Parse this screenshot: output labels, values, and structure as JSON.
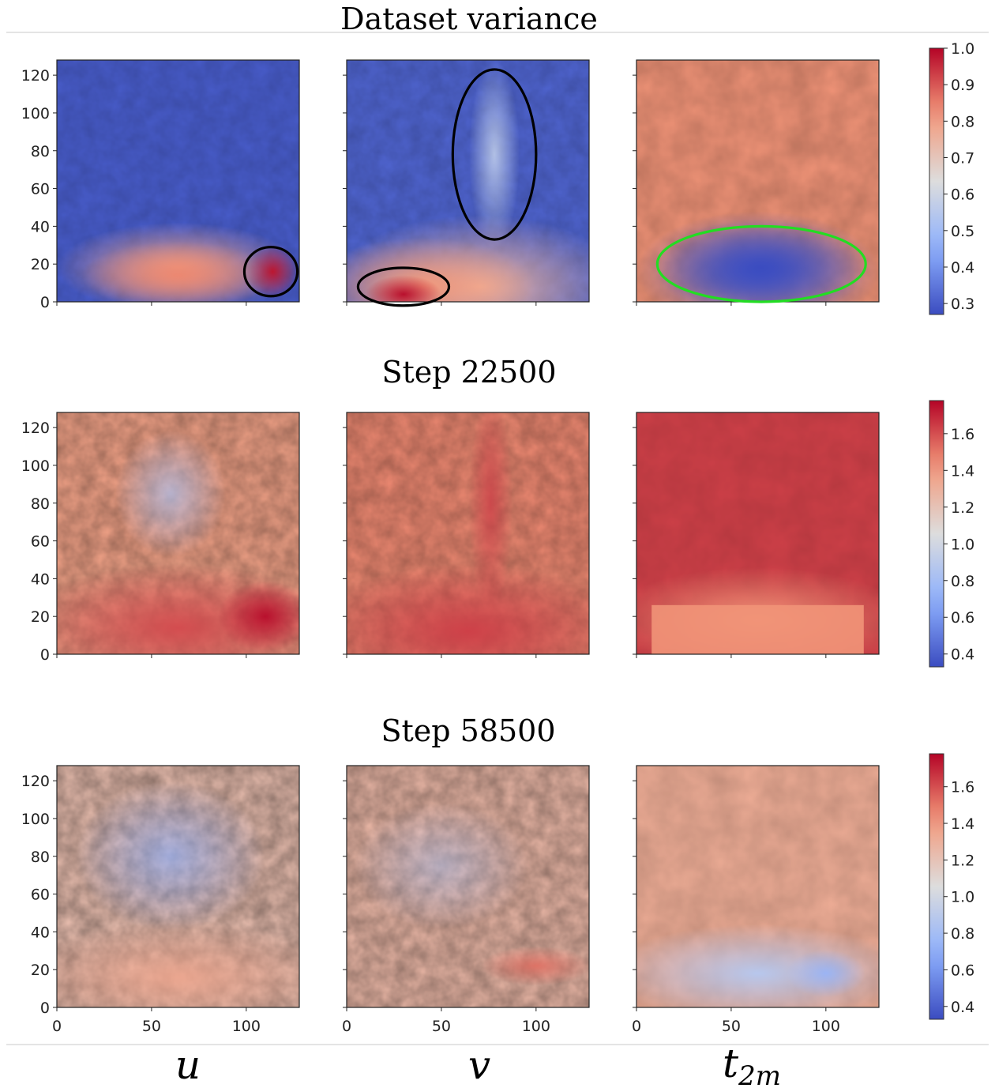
{
  "chart_data": {
    "type": "heatmap",
    "columns": [
      "u",
      "v",
      "t"
    ],
    "column_subscript": {
      "t": "2m"
    },
    "x_ticks": [
      0,
      50,
      100
    ],
    "y_ticks": [
      0,
      20,
      40,
      60,
      80,
      100,
      120
    ],
    "xlim": [
      0,
      128
    ],
    "ylim": [
      0,
      128
    ],
    "colormap": "coolwarm",
    "rows": [
      {
        "title": "Dataset variance",
        "colorbar": {
          "min": 0.27,
          "max": 1.0,
          "ticks": [
            "1.0",
            "0.9",
            "0.8",
            "0.7",
            "0.6",
            "0.5",
            "0.4",
            "0.3"
          ]
        },
        "panels": [
          {
            "variable": "u",
            "description": "low variance (blue) above y≈40; warm band y≈0–40 with peak near x≈115, y≈15"
          },
          {
            "variable": "v",
            "description": "low variance (blue) above y≈40 with lighter streak near x≈75, y≈40–120; warm dome y≈0–40 peaking near x≈30, y≈5"
          },
          {
            "variable": "t2m",
            "description": "warm (≈0.75) over most of the field; strong blue low-variance region y≈0–40, x≈10–120"
          }
        ],
        "annotations": [
          {
            "panel": "u",
            "shape": "ellipse",
            "color": "#000000",
            "center": [
              113,
              16
            ],
            "radii": [
              14,
              13
            ]
          },
          {
            "panel": "v",
            "shape": "ellipse",
            "color": "#000000",
            "center": [
              30,
              8
            ],
            "radii": [
              24,
              10
            ]
          },
          {
            "panel": "v",
            "shape": "ellipse",
            "color": "#000000",
            "center": [
              78,
              78
            ],
            "radii": [
              22,
              45
            ]
          },
          {
            "panel": "t2m",
            "shape": "ellipse",
            "color": "#22dd22",
            "center": [
              66,
              20
            ],
            "radii": [
              55,
              20
            ]
          }
        ]
      },
      {
        "title": "Step 22500",
        "colorbar": {
          "min": 0.33,
          "max": 1.78,
          "ticks": [
            "1.6",
            "1.4",
            "1.2",
            "1.0",
            "0.8",
            "0.6",
            "0.4"
          ]
        },
        "panels": [
          {
            "variable": "u",
            "description": "mixed red/blue noise above y≈40; strong red y≈0–40, peak near x≈110, y≈20"
          },
          {
            "variable": "v",
            "description": "red dominated with vertical streak near x≈75; strong red y≈0–40"
          },
          {
            "variable": "t2m",
            "description": "uniform deep red; lighter salmon region y≈0–40"
          }
        ]
      },
      {
        "title": "Step 58500",
        "colorbar": {
          "min": 0.33,
          "max": 1.78,
          "ticks": [
            "1.6",
            "1.4",
            "1.2",
            "1.0",
            "0.8",
            "0.6",
            "0.4"
          ]
        },
        "panels": [
          {
            "variable": "u",
            "description": "blue noise in centre y≈40–120; light red band y≈0–40"
          },
          {
            "variable": "v",
            "description": "mixed light red/blue noise; red band near y≈10–30"
          },
          {
            "variable": "t2m",
            "description": "light salmon field; pale blue region y≈0–40"
          }
        ]
      }
    ]
  }
}
